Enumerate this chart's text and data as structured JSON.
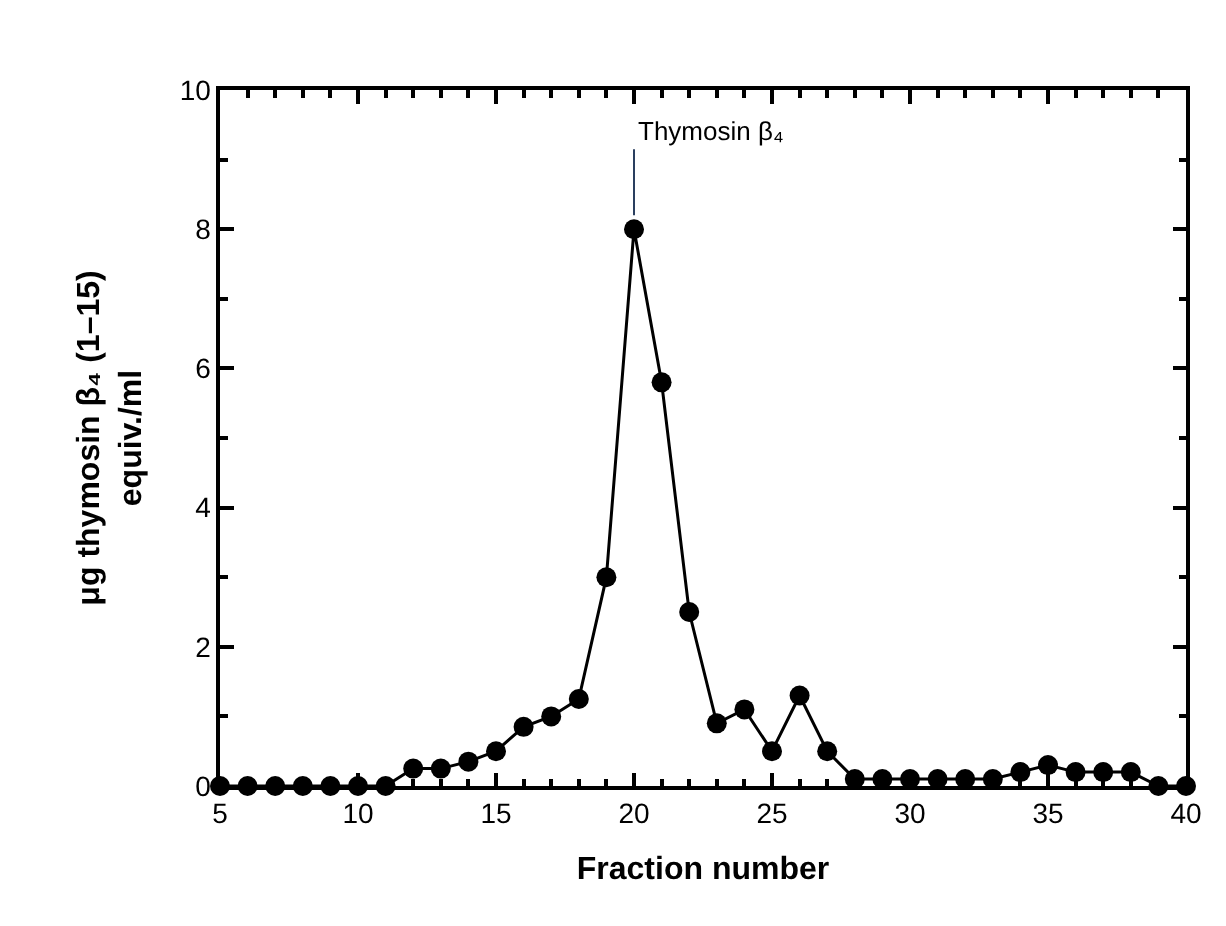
{
  "chart_data": {
    "type": "line",
    "xlabel": "Fraction number",
    "ylabel": "μg thymosin β₄ (1–15)\nequiv./ml",
    "x": [
      5,
      6,
      7,
      8,
      9,
      10,
      11,
      12,
      13,
      14,
      15,
      16,
      17,
      18,
      19,
      20,
      21,
      22,
      23,
      24,
      25,
      26,
      27,
      28,
      29,
      30,
      31,
      32,
      33,
      34,
      35,
      36,
      37,
      38,
      39,
      40
    ],
    "series": [
      {
        "color": "#000000",
        "values": [
          0,
          0,
          0,
          0,
          0,
          0,
          0,
          0.25,
          0.25,
          0.35,
          0.5,
          0.85,
          1.0,
          1.25,
          3.0,
          8.0,
          5.8,
          2.5,
          0.9,
          1.1,
          0.5,
          1.3,
          0.5,
          0.1,
          0.1,
          0.1,
          0.1,
          0.1,
          0.1,
          0.2,
          0.3,
          0.2,
          0.2,
          0.2,
          0,
          0
        ]
      }
    ],
    "xlim": [
      5,
      40
    ],
    "xticks": [
      5,
      10,
      15,
      20,
      25,
      30,
      35,
      40
    ],
    "ylim": [
      0,
      10
    ],
    "yticks": [
      0,
      2,
      4,
      6,
      8,
      10
    ],
    "annotations": [
      {
        "text": "Thymosin β₄",
        "x": 20,
        "y": 8
      }
    ],
    "marker": "circle",
    "line_style": "solid",
    "legend": false
  }
}
